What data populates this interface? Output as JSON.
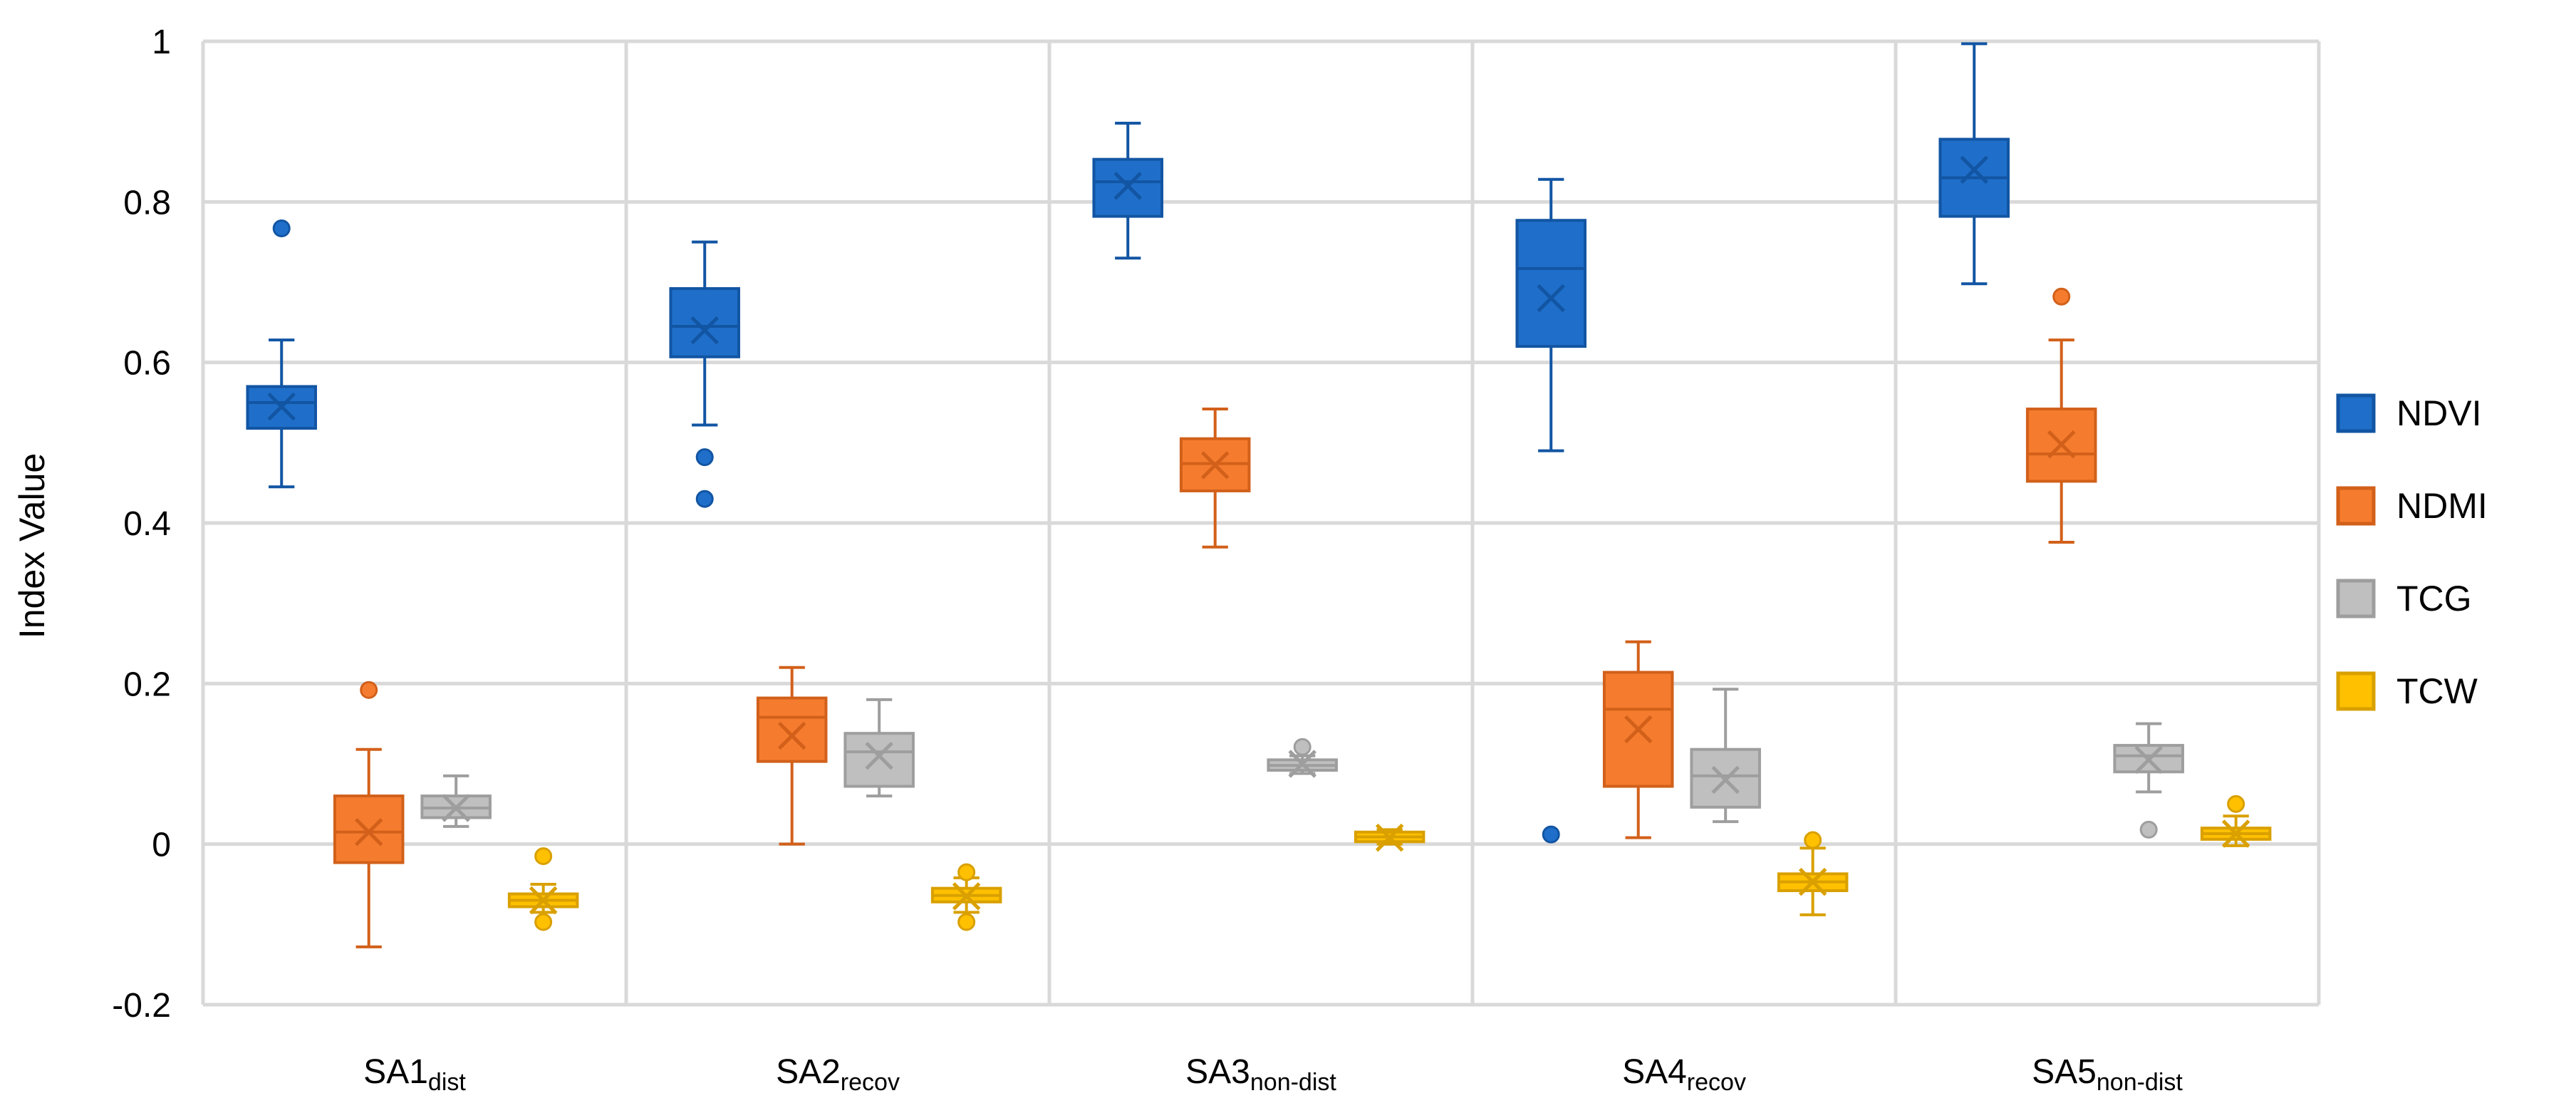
{
  "chart_data": {
    "type": "boxplot",
    "title": "",
    "xlabel": "",
    "ylabel": "Index Value",
    "ylim": [
      -0.2,
      1
    ],
    "yticks": [
      -0.2,
      0,
      0.2,
      0.4,
      0.6,
      0.8,
      1
    ],
    "ytick_labels": [
      "-0.2",
      "0",
      "0.2",
      "0.4",
      "0.6",
      "0.8",
      "1"
    ],
    "grid": true,
    "legend_position": "right",
    "categories": [
      {
        "main": "SA1",
        "sub": "dist"
      },
      {
        "main": "SA2",
        "sub": "recov"
      },
      {
        "main": "SA3",
        "sub": "non-dist"
      },
      {
        "main": "SA4",
        "sub": "recov"
      },
      {
        "main": "SA5",
        "sub": "non-dist"
      }
    ],
    "series": [
      {
        "name": "NDVI",
        "fill": "#1f6fca",
        "stroke": "#1255a3",
        "boxes": [
          {
            "min": 0.445,
            "q1": 0.518,
            "median": 0.55,
            "q3": 0.57,
            "max": 0.628,
            "mean": 0.545,
            "outliers": [
              0.767
            ]
          },
          {
            "min": 0.522,
            "q1": 0.607,
            "median": 0.645,
            "q3": 0.692,
            "max": 0.75,
            "mean": 0.64,
            "outliers": [
              0.482,
              0.43
            ]
          },
          {
            "min": 0.73,
            "q1": 0.782,
            "median": 0.825,
            "q3": 0.853,
            "max": 0.898,
            "mean": 0.82,
            "outliers": []
          },
          {
            "min": 0.49,
            "q1": 0.62,
            "median": 0.717,
            "q3": 0.777,
            "max": 0.828,
            "mean": 0.68,
            "outliers": [
              0.012
            ]
          },
          {
            "min": 0.698,
            "q1": 0.782,
            "median": 0.83,
            "q3": 0.878,
            "max": 0.997,
            "mean": 0.84,
            "outliers": []
          }
        ]
      },
      {
        "name": "NDMI",
        "fill": "#f57c2e",
        "stroke": "#d2601a",
        "boxes": [
          {
            "min": -0.128,
            "q1": -0.023,
            "median": 0.015,
            "q3": 0.06,
            "max": 0.118,
            "mean": 0.015,
            "outliers": [
              0.192
            ]
          },
          {
            "min": 0.0,
            "q1": 0.103,
            "median": 0.158,
            "q3": 0.182,
            "max": 0.22,
            "mean": 0.135,
            "outliers": []
          },
          {
            "min": 0.37,
            "q1": 0.44,
            "median": 0.474,
            "q3": 0.505,
            "max": 0.542,
            "mean": 0.472,
            "outliers": []
          },
          {
            "min": 0.008,
            "q1": 0.072,
            "median": 0.168,
            "q3": 0.214,
            "max": 0.252,
            "mean": 0.143,
            "outliers": []
          },
          {
            "min": 0.376,
            "q1": 0.452,
            "median": 0.486,
            "q3": 0.542,
            "max": 0.628,
            "mean": 0.498,
            "outliers": [
              0.682
            ]
          }
        ]
      },
      {
        "name": "TCG",
        "fill": "#bfbfbf",
        "stroke": "#9e9e9e",
        "boxes": [
          {
            "min": 0.022,
            "q1": 0.033,
            "median": 0.045,
            "q3": 0.06,
            "max": 0.085,
            "mean": 0.045,
            "outliers": []
          },
          {
            "min": 0.06,
            "q1": 0.072,
            "median": 0.115,
            "q3": 0.138,
            "max": 0.18,
            "mean": 0.11,
            "outliers": []
          },
          {
            "min": 0.088,
            "q1": 0.092,
            "median": 0.098,
            "q3": 0.105,
            "max": 0.11,
            "mean": 0.1,
            "outliers": [
              0.121
            ]
          },
          {
            "min": 0.028,
            "q1": 0.046,
            "median": 0.085,
            "q3": 0.118,
            "max": 0.193,
            "mean": 0.08,
            "outliers": []
          },
          {
            "min": 0.065,
            "q1": 0.09,
            "median": 0.11,
            "q3": 0.123,
            "max": 0.15,
            "mean": 0.105,
            "outliers": [
              0.018
            ]
          }
        ]
      },
      {
        "name": "TCW",
        "fill": "#ffc000",
        "stroke": "#d9a000",
        "boxes": [
          {
            "min": -0.085,
            "q1": -0.078,
            "median": -0.07,
            "q3": -0.062,
            "max": -0.05,
            "mean": -0.07,
            "outliers": [
              -0.015,
              -0.097
            ]
          },
          {
            "min": -0.085,
            "q1": -0.072,
            "median": -0.064,
            "q3": -0.055,
            "max": -0.042,
            "mean": -0.065,
            "outliers": [
              -0.035,
              -0.097
            ]
          },
          {
            "min": 0.0,
            "q1": 0.003,
            "median": 0.009,
            "q3": 0.015,
            "max": 0.018,
            "mean": 0.008,
            "outliers": []
          },
          {
            "min": -0.088,
            "q1": -0.058,
            "median": -0.047,
            "q3": -0.037,
            "max": -0.005,
            "mean": -0.047,
            "outliers": [
              0.005
            ]
          },
          {
            "min": -0.002,
            "q1": 0.006,
            "median": 0.013,
            "q3": 0.02,
            "max": 0.035,
            "mean": 0.013,
            "outliers": [
              0.05
            ]
          }
        ]
      }
    ]
  }
}
